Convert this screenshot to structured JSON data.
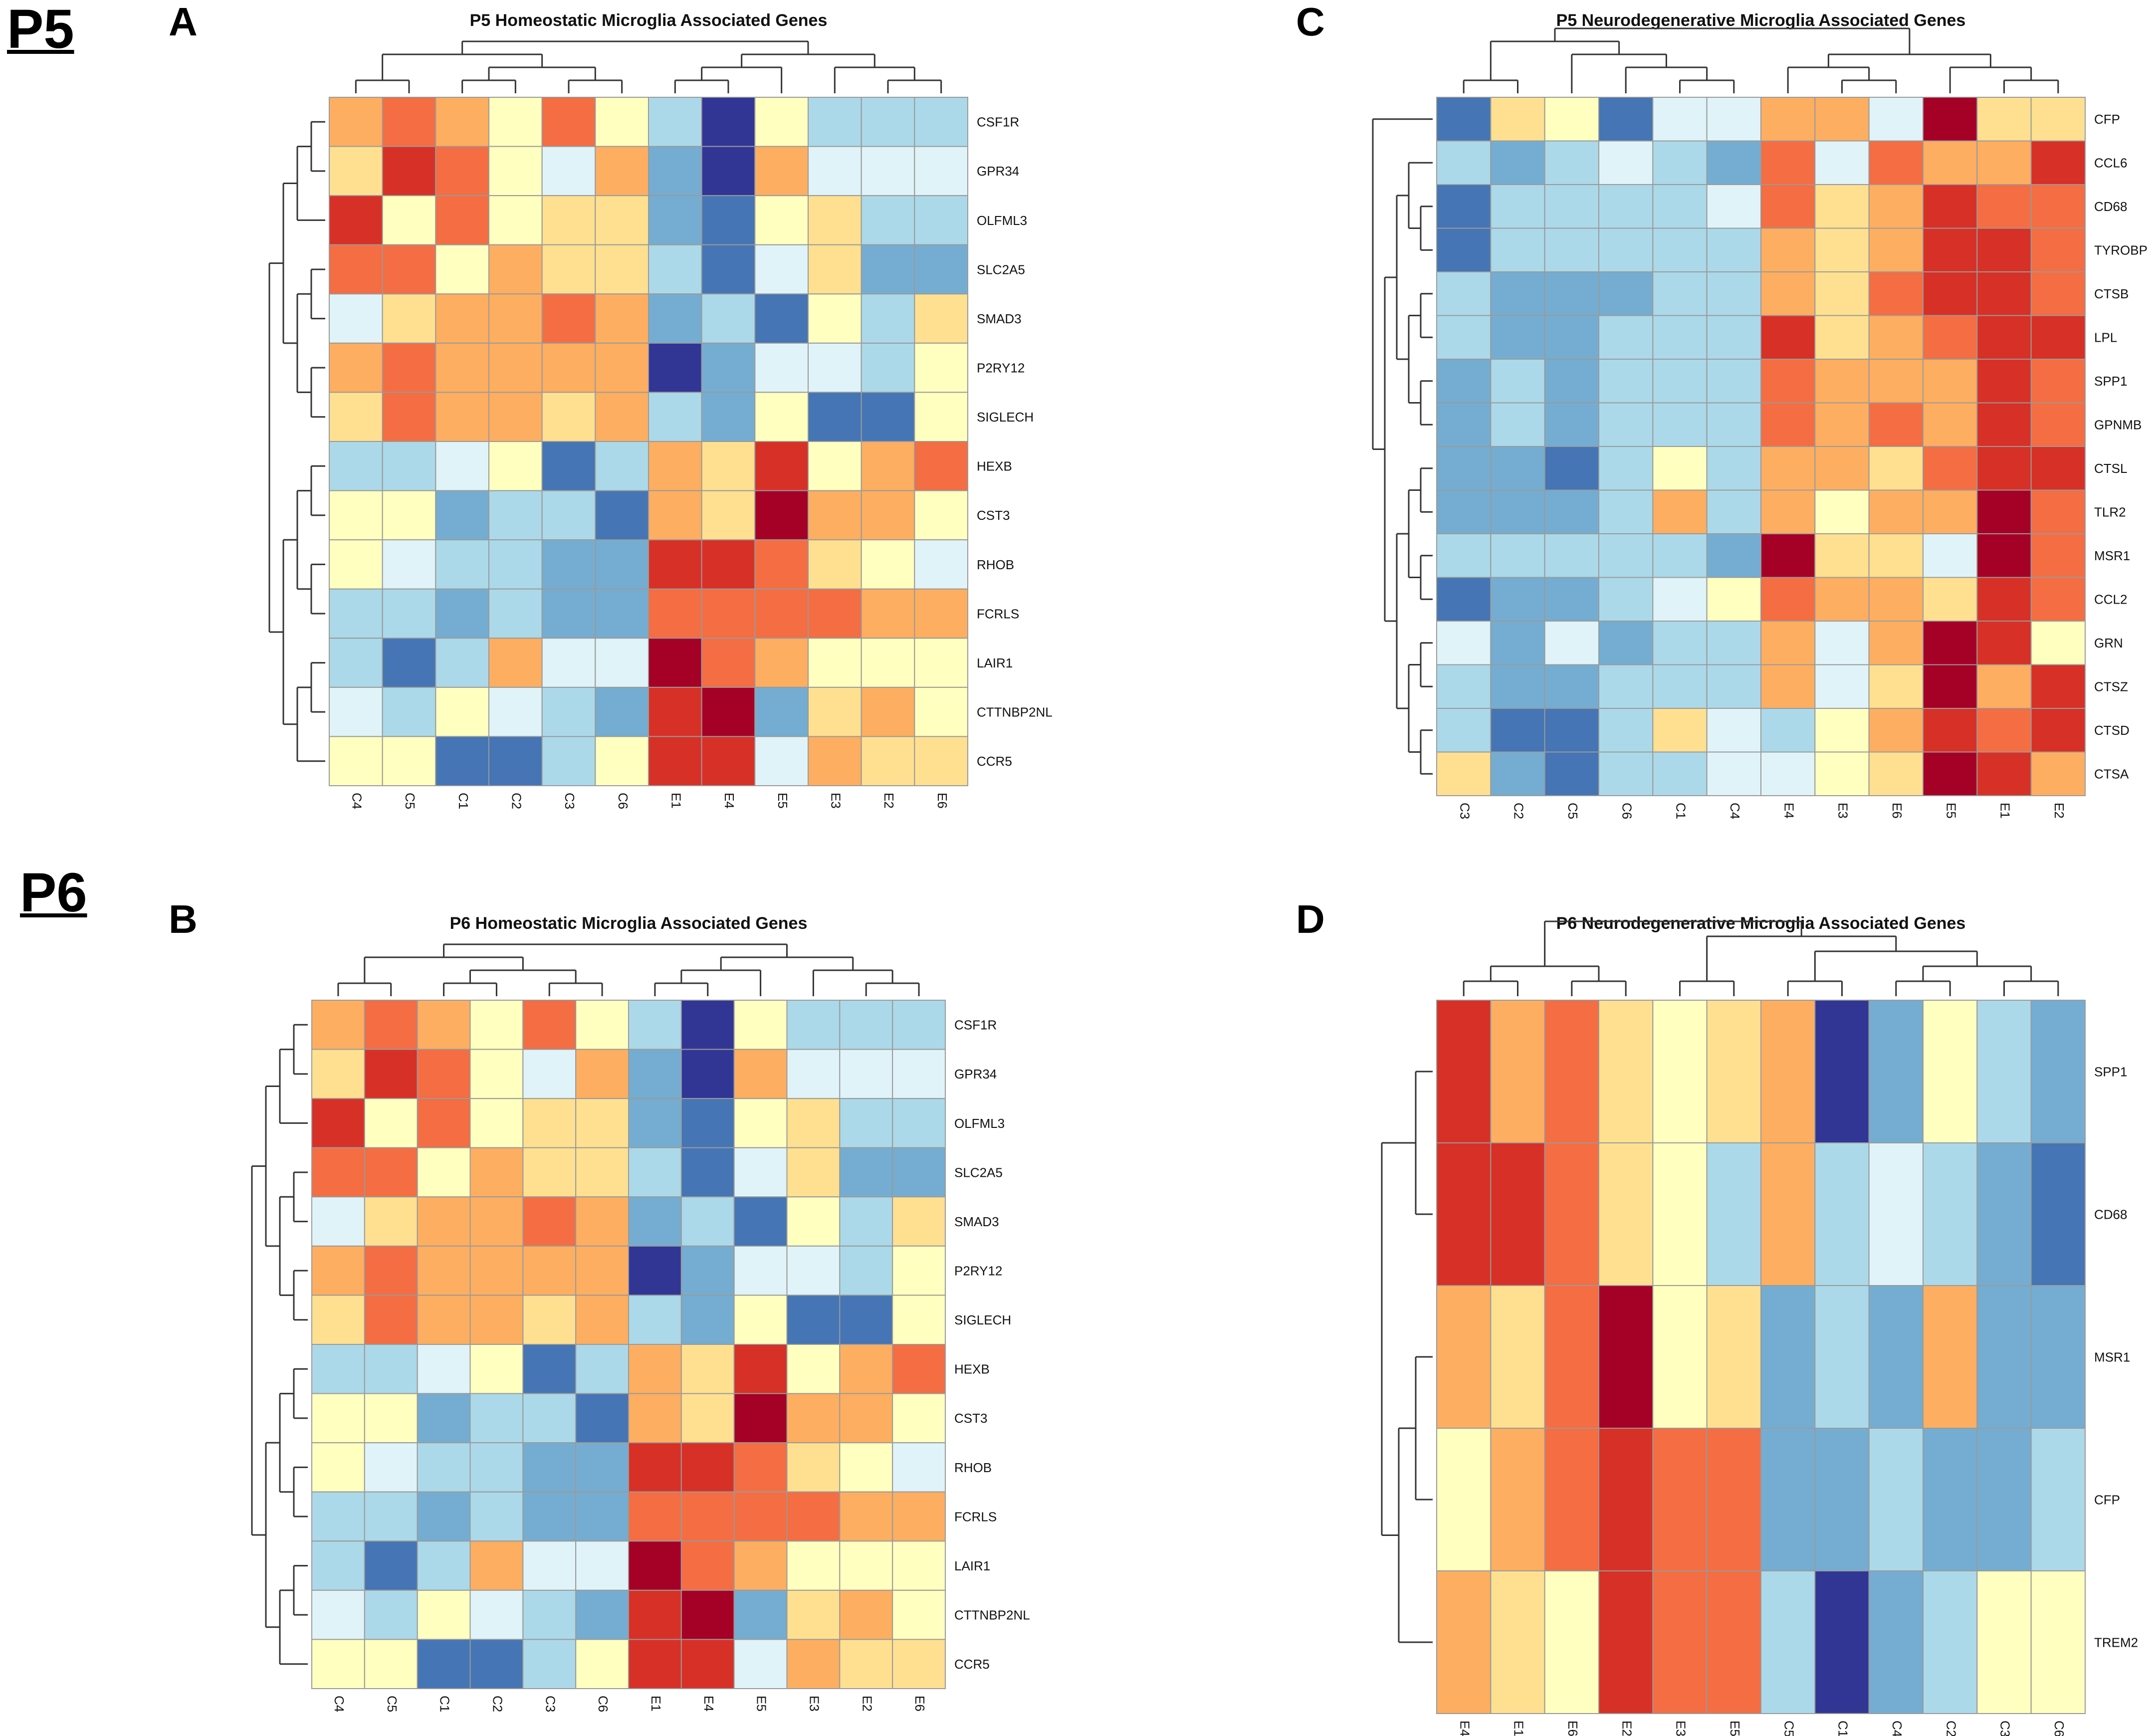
{
  "labels": {
    "p5": "P5",
    "p6": "P6",
    "panel_a": "A",
    "panel_b": "B",
    "panel_c": "C",
    "panel_d": "D"
  },
  "palette": [
    "#313695",
    "#4575b4",
    "#74add1",
    "#abd9e9",
    "#e0f3f8",
    "#ffffbf",
    "#fee090",
    "#fdae61",
    "#f46d43",
    "#d73027",
    "#a50026"
  ],
  "chart_data": [
    {
      "type": "heatmap",
      "panel": "A",
      "title": "P5 Homeostatic Microglia Associated Genes",
      "columns": [
        "C4",
        "C5",
        "C1",
        "C2",
        "C3",
        "C6",
        "E1",
        "E4",
        "E5",
        "E3",
        "E2",
        "E6"
      ],
      "rows": [
        "CSF1R",
        "GPR34",
        "OLFML3",
        "SLC2A5",
        "SMAD3",
        "P2RY12",
        "SIGLECH",
        "HEXB",
        "CST3",
        "RHOB",
        "FCRLS",
        "LAIR1",
        "CTTNBP2NL",
        "CCR5"
      ],
      "values": [
        [
          7,
          8,
          7,
          5,
          8,
          5,
          3,
          0,
          5,
          3,
          3,
          3
        ],
        [
          6,
          9,
          8,
          5,
          4,
          7,
          2,
          0,
          7,
          4,
          4,
          4
        ],
        [
          9,
          5,
          8,
          5,
          6,
          6,
          2,
          1,
          5,
          6,
          3,
          3
        ],
        [
          8,
          8,
          5,
          7,
          6,
          6,
          3,
          1,
          4,
          6,
          2,
          2
        ],
        [
          4,
          6,
          7,
          7,
          8,
          7,
          2,
          3,
          1,
          5,
          3,
          6
        ],
        [
          7,
          8,
          7,
          7,
          7,
          7,
          0,
          2,
          4,
          4,
          3,
          5
        ],
        [
          6,
          8,
          7,
          7,
          6,
          7,
          3,
          2,
          5,
          1,
          1,
          5
        ],
        [
          3,
          3,
          4,
          5,
          1,
          3,
          7,
          6,
          9,
          5,
          7,
          8
        ],
        [
          5,
          5,
          2,
          3,
          3,
          1,
          7,
          6,
          10,
          7,
          7,
          5
        ],
        [
          5,
          4,
          3,
          3,
          2,
          2,
          9,
          9,
          8,
          6,
          5,
          4
        ],
        [
          3,
          3,
          2,
          3,
          2,
          2,
          8,
          8,
          8,
          8,
          7,
          7
        ],
        [
          3,
          1,
          3,
          7,
          4,
          4,
          10,
          8,
          7,
          5,
          5,
          5
        ],
        [
          4,
          3,
          5,
          4,
          3,
          2,
          9,
          10,
          2,
          6,
          7,
          5
        ],
        [
          5,
          5,
          1,
          1,
          3,
          5,
          9,
          9,
          4,
          7,
          6,
          6
        ]
      ],
      "scale": "0 = lowest expression (dark blue), 10 = highest (dark red)"
    },
    {
      "type": "heatmap",
      "panel": "B",
      "title": "P6 Homeostatic Microglia Associated Genes",
      "columns": [
        "C4",
        "C5",
        "C1",
        "C2",
        "C3",
        "C6",
        "E1",
        "E4",
        "E5",
        "E3",
        "E2",
        "E6"
      ],
      "rows": [
        "CSF1R",
        "GPR34",
        "OLFML3",
        "SLC2A5",
        "SMAD3",
        "P2RY12",
        "SIGLECH",
        "HEXB",
        "CST3",
        "RHOB",
        "FCRLS",
        "LAIR1",
        "CTTNBP2NL",
        "CCR5"
      ],
      "values": [
        [
          7,
          8,
          7,
          5,
          8,
          5,
          3,
          0,
          5,
          3,
          3,
          3
        ],
        [
          6,
          9,
          8,
          5,
          4,
          7,
          2,
          0,
          7,
          4,
          4,
          4
        ],
        [
          9,
          5,
          8,
          5,
          6,
          6,
          2,
          1,
          5,
          6,
          3,
          3
        ],
        [
          8,
          8,
          5,
          7,
          6,
          6,
          3,
          1,
          4,
          6,
          2,
          2
        ],
        [
          4,
          6,
          7,
          7,
          8,
          7,
          2,
          3,
          1,
          5,
          3,
          6
        ],
        [
          7,
          8,
          7,
          7,
          7,
          7,
          0,
          2,
          4,
          4,
          3,
          5
        ],
        [
          6,
          8,
          7,
          7,
          6,
          7,
          3,
          2,
          5,
          1,
          1,
          5
        ],
        [
          3,
          3,
          4,
          5,
          1,
          3,
          7,
          6,
          9,
          5,
          7,
          8
        ],
        [
          5,
          5,
          2,
          3,
          3,
          1,
          7,
          6,
          10,
          7,
          7,
          5
        ],
        [
          5,
          4,
          3,
          3,
          2,
          2,
          9,
          9,
          8,
          6,
          5,
          4
        ],
        [
          3,
          3,
          2,
          3,
          2,
          2,
          8,
          8,
          8,
          8,
          7,
          7
        ],
        [
          3,
          1,
          3,
          7,
          4,
          4,
          10,
          8,
          7,
          5,
          5,
          5
        ],
        [
          4,
          3,
          5,
          4,
          3,
          2,
          9,
          10,
          2,
          6,
          7,
          5
        ],
        [
          5,
          5,
          1,
          1,
          3,
          5,
          9,
          9,
          4,
          7,
          6,
          6
        ]
      ],
      "scale": "0 = lowest expression (dark blue), 10 = highest (dark red)"
    },
    {
      "type": "heatmap",
      "panel": "C",
      "title": "P5 Neurodegenerative Microglia Associated Genes",
      "columns": [
        "C3",
        "C2",
        "C5",
        "C6",
        "C1",
        "C4",
        "E4",
        "E3",
        "E6",
        "E5",
        "E1",
        "E2"
      ],
      "rows": [
        "CFP",
        "CCL6",
        "CD68",
        "TYROBP",
        "CTSB",
        "LPL",
        "SPP1",
        "GPNMB",
        "CTSL",
        "TLR2",
        "MSR1",
        "CCL2",
        "GRN",
        "CTSZ",
        "CTSD",
        "CTSA"
      ],
      "values": [
        [
          1,
          6,
          5,
          1,
          4,
          4,
          7,
          7,
          4,
          10,
          6,
          6
        ],
        [
          3,
          2,
          3,
          4,
          3,
          2,
          8,
          4,
          8,
          7,
          7,
          9
        ],
        [
          1,
          3,
          3,
          3,
          3,
          4,
          8,
          6,
          7,
          9,
          8,
          8
        ],
        [
          1,
          3,
          3,
          3,
          3,
          3,
          7,
          6,
          7,
          9,
          9,
          8
        ],
        [
          3,
          2,
          2,
          2,
          3,
          3,
          7,
          6,
          8,
          9,
          9,
          8
        ],
        [
          3,
          2,
          2,
          3,
          3,
          3,
          9,
          6,
          7,
          8,
          9,
          9
        ],
        [
          2,
          3,
          2,
          3,
          3,
          3,
          8,
          7,
          7,
          7,
          9,
          8
        ],
        [
          2,
          3,
          2,
          3,
          3,
          3,
          8,
          7,
          8,
          7,
          9,
          8
        ],
        [
          2,
          2,
          1,
          3,
          5,
          3,
          7,
          7,
          6,
          8,
          9,
          9
        ],
        [
          2,
          2,
          2,
          3,
          7,
          3,
          7,
          5,
          7,
          7,
          10,
          8
        ],
        [
          3,
          3,
          3,
          3,
          3,
          2,
          10,
          6,
          6,
          4,
          10,
          8
        ],
        [
          1,
          2,
          2,
          3,
          4,
          5,
          8,
          7,
          7,
          6,
          9,
          8
        ],
        [
          4,
          2,
          4,
          2,
          3,
          3,
          7,
          4,
          7,
          10,
          9,
          5
        ],
        [
          3,
          2,
          2,
          3,
          3,
          3,
          7,
          4,
          6,
          10,
          7,
          9
        ],
        [
          3,
          1,
          1,
          3,
          6,
          4,
          3,
          5,
          7,
          9,
          8,
          9
        ],
        [
          6,
          2,
          1,
          3,
          3,
          4,
          4,
          5,
          6,
          10,
          9,
          7
        ]
      ],
      "scale": "0 = lowest expression (dark blue), 10 = highest (dark red)"
    },
    {
      "type": "heatmap",
      "panel": "D",
      "title": "P6 Neurodegenerative Microglia Associated Genes",
      "columns": [
        "E4",
        "E1",
        "E6",
        "E2",
        "E3",
        "E5",
        "C5",
        "C1",
        "C4",
        "C2",
        "C3",
        "C6"
      ],
      "rows": [
        "SPP1",
        "CD68",
        "MSR1",
        "CFP",
        "TREM2"
      ],
      "values": [
        [
          9,
          7,
          8,
          6,
          5,
          6,
          7,
          0,
          2,
          5,
          3,
          2
        ],
        [
          9,
          9,
          8,
          6,
          5,
          3,
          7,
          3,
          4,
          3,
          2,
          1
        ],
        [
          7,
          6,
          8,
          10,
          5,
          6,
          2,
          3,
          2,
          7,
          2,
          2
        ],
        [
          5,
          7,
          8,
          9,
          8,
          8,
          2,
          2,
          3,
          2,
          2,
          3
        ],
        [
          7,
          6,
          5,
          9,
          8,
          8,
          3,
          0,
          2,
          3,
          5,
          5
        ]
      ],
      "scale": "0 = lowest expression (dark blue), 10 = highest (dark red)"
    }
  ]
}
